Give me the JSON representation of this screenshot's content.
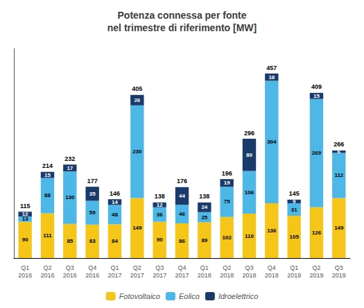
{
  "chart_data": {
    "type": "bar",
    "title": "Potenza connessa per fonte\nnel trimestre di riferimento [MW]",
    "categories": [
      "Q1\n2016",
      "Q2\n2016",
      "Q3\n2016",
      "Q4\n2016",
      "Q1\n2017",
      "Q2\n2017",
      "Q3\n2017",
      "Q4\n2017",
      "Q1\n2018",
      "Q2\n2018",
      "Q3\n2018",
      "Q4\n2018",
      "Q1\n2019",
      "Q2\n2019",
      "Q3\n2019"
    ],
    "series": [
      {
        "name": "Fotovoltaico",
        "color": "#f5c518",
        "values": [
          90,
          111,
          85,
          83,
          84,
          149,
          90,
          86,
          89,
          102,
          110,
          136,
          105,
          126,
          149
        ]
      },
      {
        "name": "Eolico",
        "color": "#4db8e8",
        "values": [
          13,
          88,
          130,
          59,
          48,
          230,
          36,
          46,
          25,
          75,
          106,
          304,
          31,
          269,
          112
        ]
      },
      {
        "name": "Idroelettrico",
        "color": "#1a3a6b",
        "values": [
          12,
          15,
          17,
          35,
          14,
          26,
          12,
          44,
          24,
          19,
          80,
          18,
          9,
          15,
          6
        ]
      }
    ],
    "totals": [
      115,
      214,
      232,
      177,
      146,
      405,
      138,
      176,
      138,
      196,
      296,
      457,
      145,
      409,
      266
    ],
    "stacked": true,
    "data_labels": true,
    "tick_labels": "x",
    "grid": false,
    "legend": "bottom",
    "ylim": [
      0,
      520
    ]
  }
}
